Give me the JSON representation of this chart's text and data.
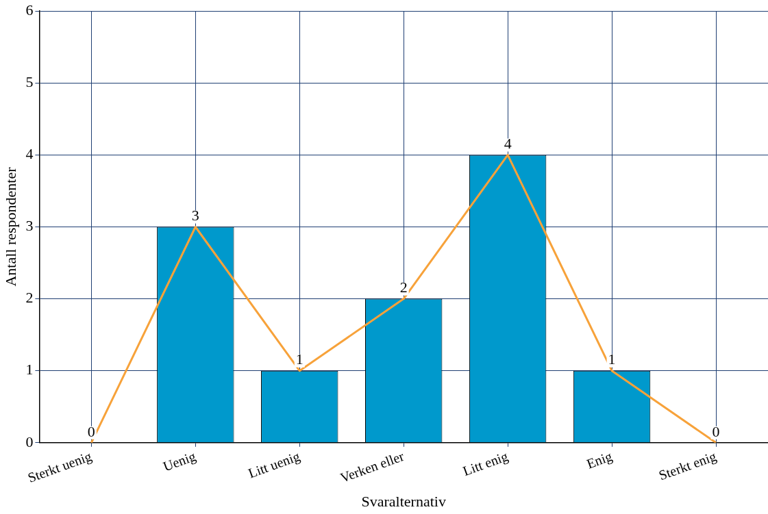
{
  "chart_data": {
    "type": "bar",
    "xlabel": "Svaralternativ",
    "ylabel": "Antall respondenter",
    "categories": [
      "Sterkt uenig",
      "Uenig",
      "Litt uenig",
      "Verken eller",
      "Litt enig",
      "Enig",
      "Sterkt enig"
    ],
    "series": [
      {
        "color": "#0099cc",
        "values": [
          0,
          3,
          1,
          2,
          4,
          1,
          0
        ]
      },
      {
        "type": "line",
        "color": "#f7a23a",
        "values": [
          0,
          3,
          1,
          2,
          4,
          1,
          0
        ],
        "value_labels": [
          "0",
          "3",
          "1",
          "2",
          "4",
          "1",
          "0"
        ]
      }
    ],
    "ylim": [
      0,
      6
    ],
    "yticks": [
      0,
      1,
      2,
      3,
      4,
      5,
      6
    ],
    "grid": true,
    "legend": false,
    "marker": "none",
    "line_style": "solid"
  }
}
